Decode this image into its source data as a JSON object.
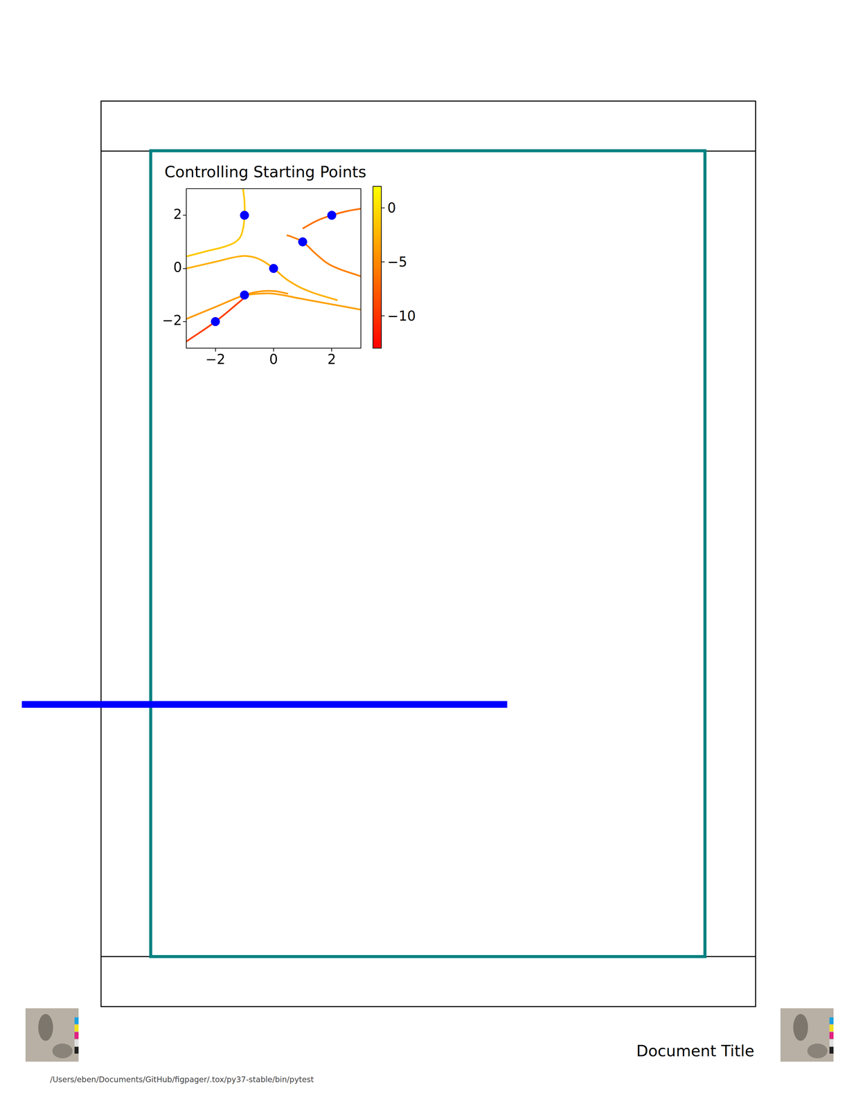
{
  "chart_data": {
    "type": "streamplot",
    "title": "Controlling Starting Points",
    "xlim": [
      -3,
      3
    ],
    "ylim": [
      -3,
      3
    ],
    "xticks": [
      {
        "value": -2,
        "label": "−2"
      },
      0,
      2
    ],
    "yticks": [
      {
        "value": -2,
        "label": "−2"
      },
      0,
      2
    ],
    "grid": false,
    "legend": "none",
    "series": [
      {
        "type": "line",
        "color": "#ffc800",
        "x": [
          -1.05,
          -1.0,
          -1.0,
          -1.05,
          -1.2,
          -1.6,
          -2.3,
          -3.0
        ],
        "values": [
          3.0,
          2.5,
          2.0,
          1.5,
          1.1,
          0.85,
          0.65,
          0.45
        ]
      },
      {
        "type": "line",
        "color": "#ffb000",
        "x": [
          -3.0,
          -2.0,
          -1.2,
          -0.8,
          -0.4,
          0.0,
          0.5,
          1.2,
          2.2
        ],
        "values": [
          0.0,
          0.25,
          0.45,
          0.45,
          0.3,
          0.0,
          -0.45,
          -0.85,
          -1.2
        ]
      },
      {
        "type": "line",
        "color": "#ff9a00",
        "x": [
          -3.0,
          -2.0,
          -1.0,
          -0.5,
          0.0,
          0.5
        ],
        "values": [
          -1.9,
          -1.45,
          -1.0,
          -0.87,
          -0.85,
          -0.95
        ]
      },
      {
        "type": "line",
        "color": "#ffa000",
        "x": [
          -1.0,
          -0.5,
          0.0,
          1.0,
          2.0,
          3.0
        ],
        "values": [
          -1.0,
          -0.95,
          -0.95,
          -1.15,
          -1.35,
          -1.55
        ]
      },
      {
        "type": "line",
        "color": "#ff4000",
        "x": [
          -3.0,
          -2.0,
          -1.0
        ],
        "values": [
          -2.75,
          -2.0,
          -1.1
        ]
      },
      {
        "type": "line",
        "color": "#ff8000",
        "x": [
          0.45,
          0.6,
          1.0,
          1.5,
          2.0,
          3.0
        ],
        "values": [
          1.25,
          1.2,
          1.0,
          0.5,
          0.1,
          -0.3
        ]
      },
      {
        "type": "line",
        "color": "#ff7000",
        "x": [
          1.0,
          1.5,
          2.0,
          2.5,
          3.0
        ],
        "values": [
          1.5,
          1.8,
          2.0,
          2.15,
          2.25
        ]
      },
      {
        "type": "scatter",
        "marker": "circle",
        "color": "#0000ff",
        "x": [
          -2,
          -1,
          0,
          1,
          2,
          -1
        ],
        "values": [
          -2,
          -1,
          0,
          1,
          2,
          2
        ]
      }
    ],
    "colorbar": {
      "range": [
        -13,
        2
      ],
      "ticks": [
        0,
        {
          "value": -5,
          "label": "−5"
        },
        {
          "value": -10,
          "label": "−10"
        }
      ]
    }
  },
  "footer": {
    "title": "Document Title",
    "path": "/Users/eben/Documents/GitHub/figpager/.tox/py37-stable/bin/pytest"
  }
}
